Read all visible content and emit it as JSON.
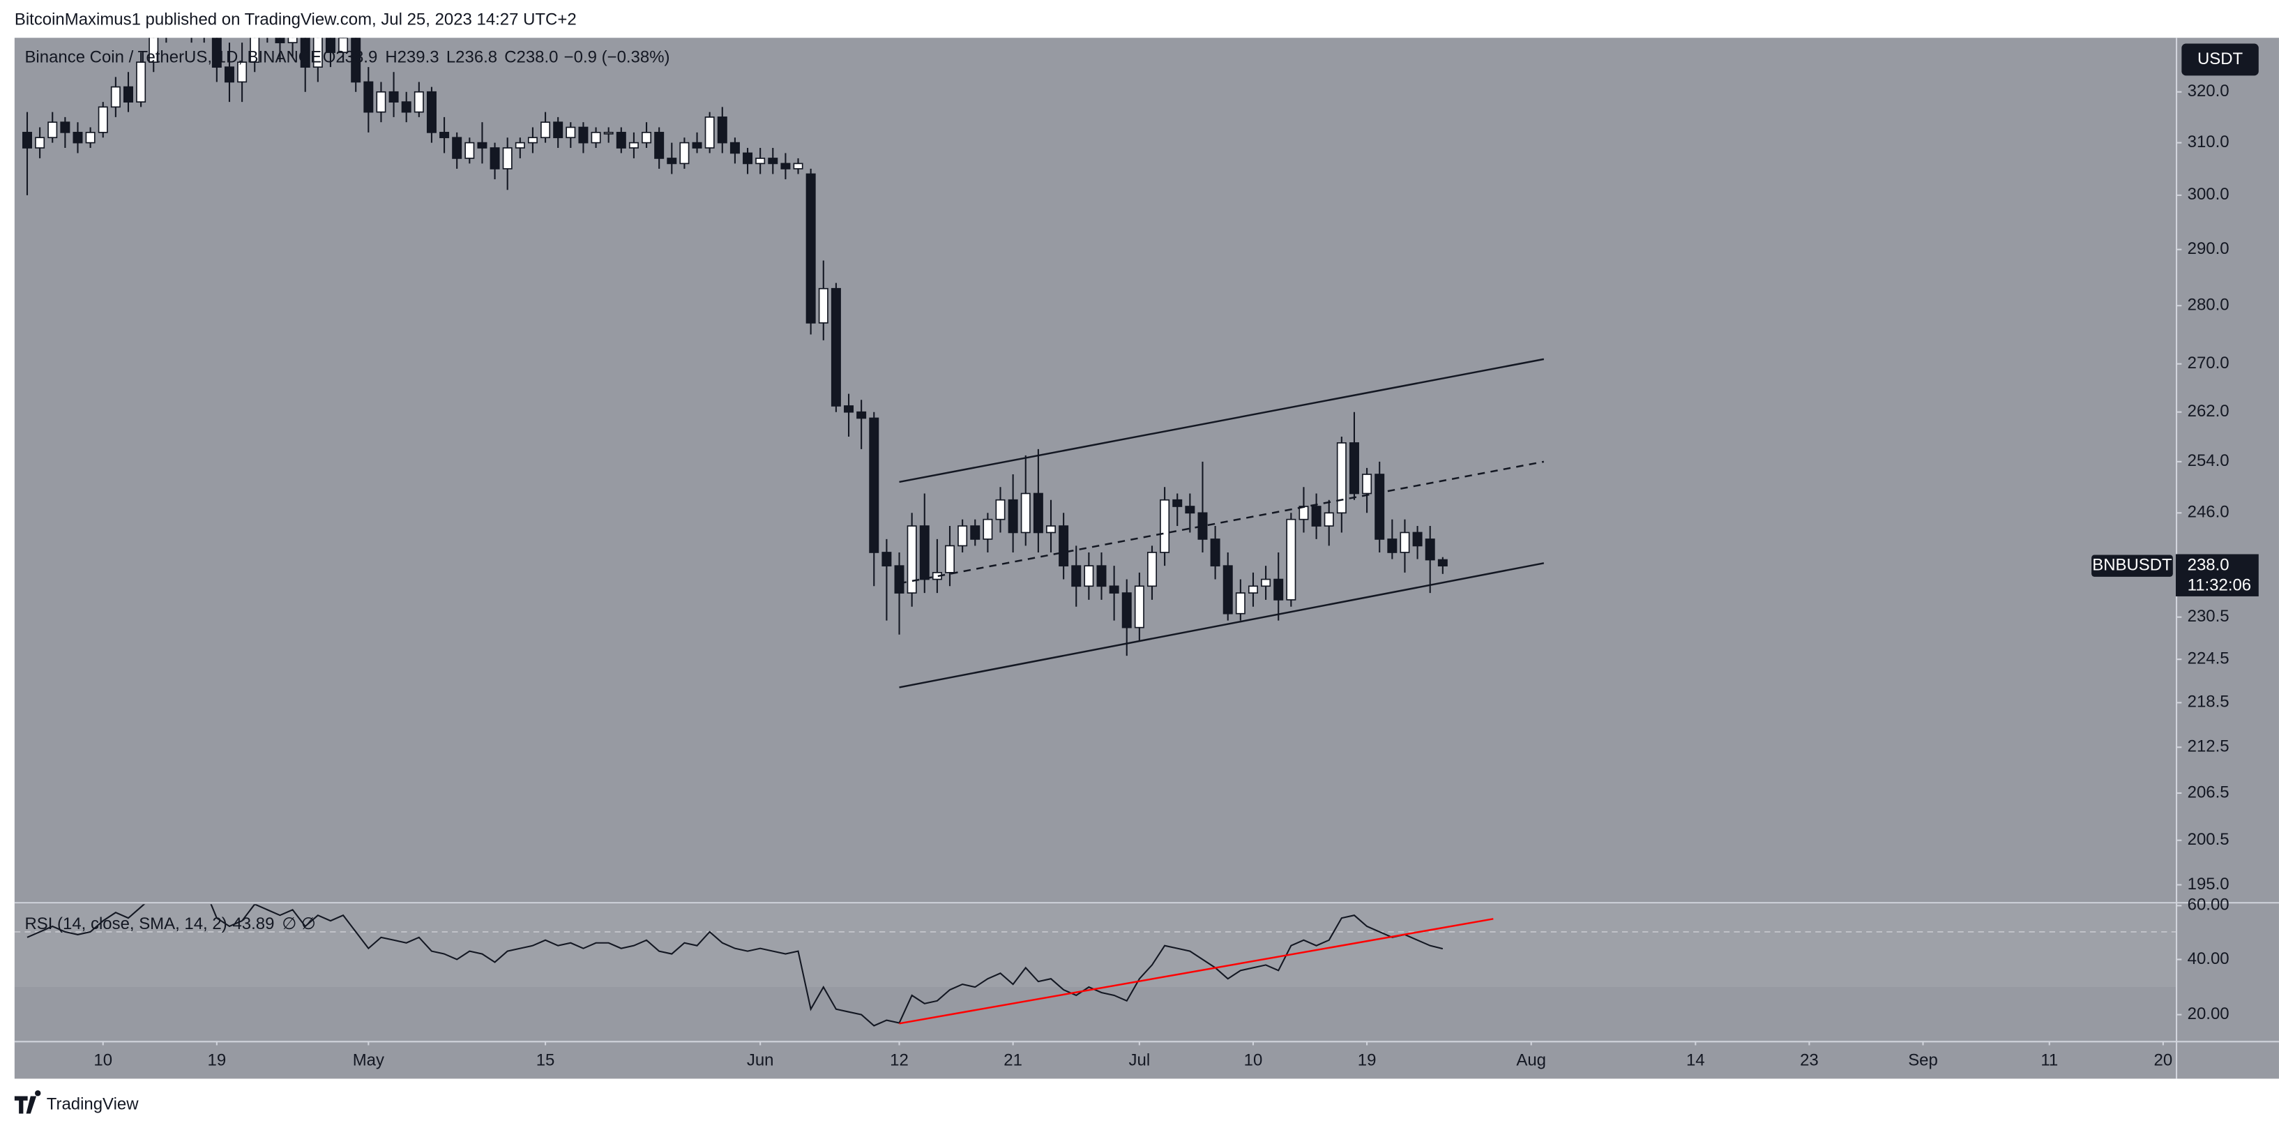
{
  "header": {
    "published": "BitcoinMaximus1 published on TradingView.com, Jul 25, 2023 14:27 UTC+2"
  },
  "footer": {
    "brand": "TradingView"
  },
  "chart_data": {
    "type": "candlestick",
    "title": "Binance Coin / TetherUS, 1D, BINANCE",
    "legend_values": [
      "O238.9",
      "H239.3",
      "L236.8",
      "C238.0",
      "−0.9 (−0.38%)"
    ],
    "currency": "USDT",
    "symbol": "BNBUSDT",
    "last_price_label": "238.0",
    "countdown": "11:32:06",
    "up_color": "#ffffff",
    "down_color": "#131722",
    "x": [
      "2023-04-04",
      "2023-04-05",
      "2023-04-06",
      "2023-04-07",
      "2023-04-08",
      "2023-04-09",
      "2023-04-10",
      "2023-04-11",
      "2023-04-12",
      "2023-04-13",
      "2023-04-14",
      "2023-04-15",
      "2023-04-16",
      "2023-04-17",
      "2023-04-18",
      "2023-04-19",
      "2023-04-20",
      "2023-04-21",
      "2023-04-22",
      "2023-04-23",
      "2023-04-24",
      "2023-04-25",
      "2023-04-26",
      "2023-04-27",
      "2023-04-28",
      "2023-04-29",
      "2023-04-30",
      "2023-05-01",
      "2023-05-02",
      "2023-05-03",
      "2023-05-04",
      "2023-05-05",
      "2023-05-06",
      "2023-05-07",
      "2023-05-08",
      "2023-05-09",
      "2023-05-10",
      "2023-05-11",
      "2023-05-12",
      "2023-05-13",
      "2023-05-14",
      "2023-05-15",
      "2023-05-16",
      "2023-05-17",
      "2023-05-18",
      "2023-05-19",
      "2023-05-20",
      "2023-05-21",
      "2023-05-22",
      "2023-05-23",
      "2023-05-24",
      "2023-05-25",
      "2023-05-26",
      "2023-05-27",
      "2023-05-28",
      "2023-05-29",
      "2023-05-30",
      "2023-05-31",
      "2023-06-01",
      "2023-06-02",
      "2023-06-03",
      "2023-06-04",
      "2023-06-05",
      "2023-06-06",
      "2023-06-07",
      "2023-06-08",
      "2023-06-09",
      "2023-06-10",
      "2023-06-11",
      "2023-06-12",
      "2023-06-13",
      "2023-06-14",
      "2023-06-15",
      "2023-06-16",
      "2023-06-17",
      "2023-06-18",
      "2023-06-19",
      "2023-06-20",
      "2023-06-21",
      "2023-06-22",
      "2023-06-23",
      "2023-06-24",
      "2023-06-25",
      "2023-06-26",
      "2023-06-27",
      "2023-06-28",
      "2023-06-29",
      "2023-06-30",
      "2023-07-01",
      "2023-07-02",
      "2023-07-03",
      "2023-07-04",
      "2023-07-05",
      "2023-07-06",
      "2023-07-07",
      "2023-07-08",
      "2023-07-09",
      "2023-07-10",
      "2023-07-11",
      "2023-07-12",
      "2023-07-13",
      "2023-07-14",
      "2023-07-15",
      "2023-07-16",
      "2023-07-17",
      "2023-07-18",
      "2023-07-19",
      "2023-07-20",
      "2023-07-21",
      "2023-07-22",
      "2023-07-23",
      "2023-07-24",
      "2023-07-25"
    ],
    "ohlc": [
      [
        312,
        316,
        300,
        309
      ],
      [
        309,
        313,
        307,
        311
      ],
      [
        311,
        316,
        310,
        314
      ],
      [
        314,
        315,
        309,
        312
      ],
      [
        312,
        314,
        308,
        310
      ],
      [
        310,
        313,
        309,
        312
      ],
      [
        312,
        318,
        311,
        317
      ],
      [
        317,
        323,
        315,
        321
      ],
      [
        321,
        324,
        316,
        318
      ],
      [
        318,
        328,
        317,
        326
      ],
      [
        326,
        334,
        324,
        332
      ],
      [
        332,
        336,
        330,
        334
      ],
      [
        334,
        340,
        332,
        338
      ],
      [
        338,
        340,
        330,
        332
      ],
      [
        332,
        345,
        330,
        342
      ],
      [
        342,
        344,
        322,
        325
      ],
      [
        325,
        330,
        318,
        322
      ],
      [
        322,
        330,
        318,
        326
      ],
      [
        326,
        338,
        324,
        335
      ],
      [
        335,
        340,
        330,
        333
      ],
      [
        333,
        338,
        326,
        330
      ],
      [
        330,
        336,
        327,
        334
      ],
      [
        334,
        345,
        320,
        325
      ],
      [
        325,
        335,
        322,
        332
      ],
      [
        332,
        336,
        325,
        328
      ],
      [
        328,
        333,
        326,
        331
      ],
      [
        331,
        334,
        320,
        322
      ],
      [
        322,
        325,
        312,
        316
      ],
      [
        316,
        322,
        314,
        320
      ],
      [
        320,
        324,
        315,
        318
      ],
      [
        318,
        320,
        314,
        316
      ],
      [
        316,
        322,
        315,
        320
      ],
      [
        320,
        321,
        310,
        312
      ],
      [
        312,
        315,
        308,
        311
      ],
      [
        311,
        312,
        305,
        307
      ],
      [
        307,
        311,
        306,
        310
      ],
      [
        310,
        314,
        306,
        309
      ],
      [
        309,
        310,
        303,
        305
      ],
      [
        305,
        311,
        301,
        309
      ],
      [
        309,
        311,
        307,
        310
      ],
      [
        310,
        313,
        308,
        311
      ],
      [
        311,
        316,
        310,
        314
      ],
      [
        314,
        315,
        309,
        311
      ],
      [
        311,
        314,
        309,
        313
      ],
      [
        313,
        314,
        308,
        310
      ],
      [
        310,
        313,
        309,
        312
      ],
      [
        312,
        313,
        310,
        312
      ],
      [
        312,
        313,
        308,
        309
      ],
      [
        309,
        312,
        307,
        310
      ],
      [
        310,
        314,
        309,
        312
      ],
      [
        312,
        313,
        305,
        307
      ],
      [
        307,
        310,
        304,
        306
      ],
      [
        306,
        311,
        305,
        310
      ],
      [
        310,
        312,
        308,
        309
      ],
      [
        309,
        316,
        308,
        315
      ],
      [
        315,
        317,
        308,
        310
      ],
      [
        310,
        311,
        306,
        308
      ],
      [
        308,
        309,
        304,
        306
      ],
      [
        306,
        309,
        304,
        307
      ],
      [
        307,
        309,
        304,
        306
      ],
      [
        306,
        308,
        303,
        305
      ],
      [
        305,
        307,
        304,
        306
      ],
      [
        304,
        305,
        275,
        277
      ],
      [
        277,
        288,
        274,
        283
      ],
      [
        283,
        284,
        262,
        263
      ],
      [
        263,
        265,
        258,
        262
      ],
      [
        262,
        264,
        256,
        261
      ],
      [
        261,
        262,
        235,
        240
      ],
      [
        240,
        242,
        230,
        238
      ],
      [
        238,
        240,
        228,
        234
      ],
      [
        234,
        246,
        232,
        244
      ],
      [
        244,
        249,
        234,
        236
      ],
      [
        236,
        242,
        234,
        237
      ],
      [
        237,
        244,
        235,
        241
      ],
      [
        241,
        245,
        240,
        244
      ],
      [
        244,
        245,
        241,
        242
      ],
      [
        242,
        246,
        240,
        245
      ],
      [
        245,
        250,
        243,
        248
      ],
      [
        248,
        252,
        240,
        243
      ],
      [
        243,
        255,
        241,
        249
      ],
      [
        249,
        256,
        240,
        243
      ],
      [
        243,
        248,
        240,
        244
      ],
      [
        244,
        246,
        236,
        238
      ],
      [
        238,
        241,
        232,
        235
      ],
      [
        235,
        240,
        233,
        238
      ],
      [
        238,
        240,
        233,
        235
      ],
      [
        235,
        238,
        230,
        234
      ],
      [
        234,
        236,
        225,
        229
      ],
      [
        229,
        237,
        227,
        235
      ],
      [
        235,
        241,
        233,
        240
      ],
      [
        240,
        250,
        238,
        248
      ],
      [
        248,
        249,
        244,
        247
      ],
      [
        247,
        249,
        243,
        246
      ],
      [
        246,
        254,
        240,
        242
      ],
      [
        242,
        244,
        236,
        238
      ],
      [
        238,
        240,
        230,
        231
      ],
      [
        231,
        236,
        230,
        234
      ],
      [
        234,
        237,
        232,
        235
      ],
      [
        235,
        238,
        233,
        236
      ],
      [
        236,
        240,
        230,
        233
      ],
      [
        233,
        246,
        232,
        245
      ],
      [
        245,
        250,
        243,
        247
      ],
      [
        247,
        249,
        242,
        244
      ],
      [
        244,
        248,
        241,
        246
      ],
      [
        246,
        258,
        243,
        257
      ],
      [
        257,
        262,
        248,
        249
      ],
      [
        249,
        253,
        246,
        252
      ],
      [
        252,
        254,
        240,
        242
      ],
      [
        242,
        245,
        239,
        240
      ],
      [
        240,
        245,
        237,
        243
      ],
      [
        243,
        244,
        239,
        241
      ],
      [
        242,
        244,
        234,
        238.9
      ],
      [
        238.9,
        239.3,
        236.8,
        238.0
      ]
    ],
    "xlim": [
      "2023-04-03",
      "2023-09-21"
    ],
    "xticks": [
      {
        "value": "2023-04-10",
        "label": "10"
      },
      {
        "value": "2023-04-19",
        "label": "19"
      },
      {
        "value": "2023-05-01",
        "label": "May"
      },
      {
        "value": "2023-05-15",
        "label": "15"
      },
      {
        "value": "2023-06-01",
        "label": "Jun"
      },
      {
        "value": "2023-06-12",
        "label": "12"
      },
      {
        "value": "2023-06-21",
        "label": "21"
      },
      {
        "value": "2023-07-01",
        "label": "Jul"
      },
      {
        "value": "2023-07-10",
        "label": "10"
      },
      {
        "value": "2023-07-19",
        "label": "19"
      },
      {
        "value": "2023-08-01",
        "label": "Aug"
      },
      {
        "value": "2023-08-14",
        "label": "14"
      },
      {
        "value": "2023-08-23",
        "label": "23"
      },
      {
        "value": "2023-09-01",
        "label": "Sep"
      },
      {
        "value": "2023-09-11",
        "label": "11"
      },
      {
        "value": "2023-09-20",
        "label": "20"
      }
    ],
    "ylim": [
      193,
      331
    ],
    "log_scale": true,
    "yticks": [
      {
        "value": 320,
        "label": "320.0"
      },
      {
        "value": 310,
        "label": "310.0"
      },
      {
        "value": 300,
        "label": "300.0"
      },
      {
        "value": 290,
        "label": "290.0"
      },
      {
        "value": 280,
        "label": "280.0"
      },
      {
        "value": 270,
        "label": "270.0"
      },
      {
        "value": 262,
        "label": "262.0"
      },
      {
        "value": 254,
        "label": "254.0"
      },
      {
        "value": 246,
        "label": "246.0"
      },
      230.5,
      224.5,
      218.5,
      212.5,
      206.5,
      200.5,
      {
        "value": 195,
        "label": "195.0"
      }
    ],
    "lines": [
      {
        "from": [
          "2023-06-12",
          250.8
        ],
        "to": [
          "2023-08-02",
          270.8
        ],
        "style": "solid",
        "color": "#131722"
      },
      {
        "from": [
          "2023-06-12",
          235.4
        ],
        "to": [
          "2023-08-02",
          254.0
        ],
        "style": "dashed",
        "color": "#131722"
      },
      {
        "from": [
          "2023-06-12",
          220.6
        ],
        "to": [
          "2023-08-02",
          238.4
        ],
        "style": "solid",
        "color": "#131722"
      }
    ],
    "rsi": {
      "title": "RSI (14, close, SMA, 14, 2)",
      "extra": "∅  ∅",
      "color": "#131722",
      "values": [
        48,
        50,
        52,
        50,
        49,
        50,
        54,
        57,
        55,
        59,
        63,
        65,
        67,
        62,
        66,
        55,
        52,
        54,
        60,
        58,
        56,
        58,
        52,
        56,
        54,
        56,
        50,
        44,
        48,
        47,
        46,
        48,
        43,
        42,
        40,
        43,
        42,
        39,
        43,
        44,
        45,
        47,
        45,
        46,
        44,
        46,
        46,
        44,
        45,
        47,
        43,
        42,
        46,
        45,
        50,
        46,
        44,
        43,
        44,
        43,
        42,
        43,
        22,
        30,
        22,
        21,
        20,
        16,
        18,
        17,
        27,
        24,
        25,
        29,
        31,
        30,
        33,
        35,
        31,
        37,
        32,
        33,
        29,
        27,
        30,
        28,
        27,
        25,
        33,
        38,
        45,
        44,
        43,
        40,
        37,
        33,
        36,
        37,
        38,
        36,
        45,
        47,
        45,
        47,
        55,
        56,
        52,
        50,
        48,
        49,
        47,
        45,
        43.89
      ],
      "ylim": [
        10.5,
        60
      ],
      "yticks": [
        {
          "value": 60,
          "label": "60.00"
        },
        {
          "value": 40,
          "label": "40.00"
        },
        {
          "value": 20,
          "label": "20.00"
        }
      ],
      "band": [
        30,
        70
      ],
      "midline": 50,
      "lines": [
        {
          "from": [
            "2023-06-12",
            16.8
          ],
          "to": [
            "2023-07-29",
            54.7
          ],
          "color": "#ff0000"
        }
      ]
    }
  }
}
